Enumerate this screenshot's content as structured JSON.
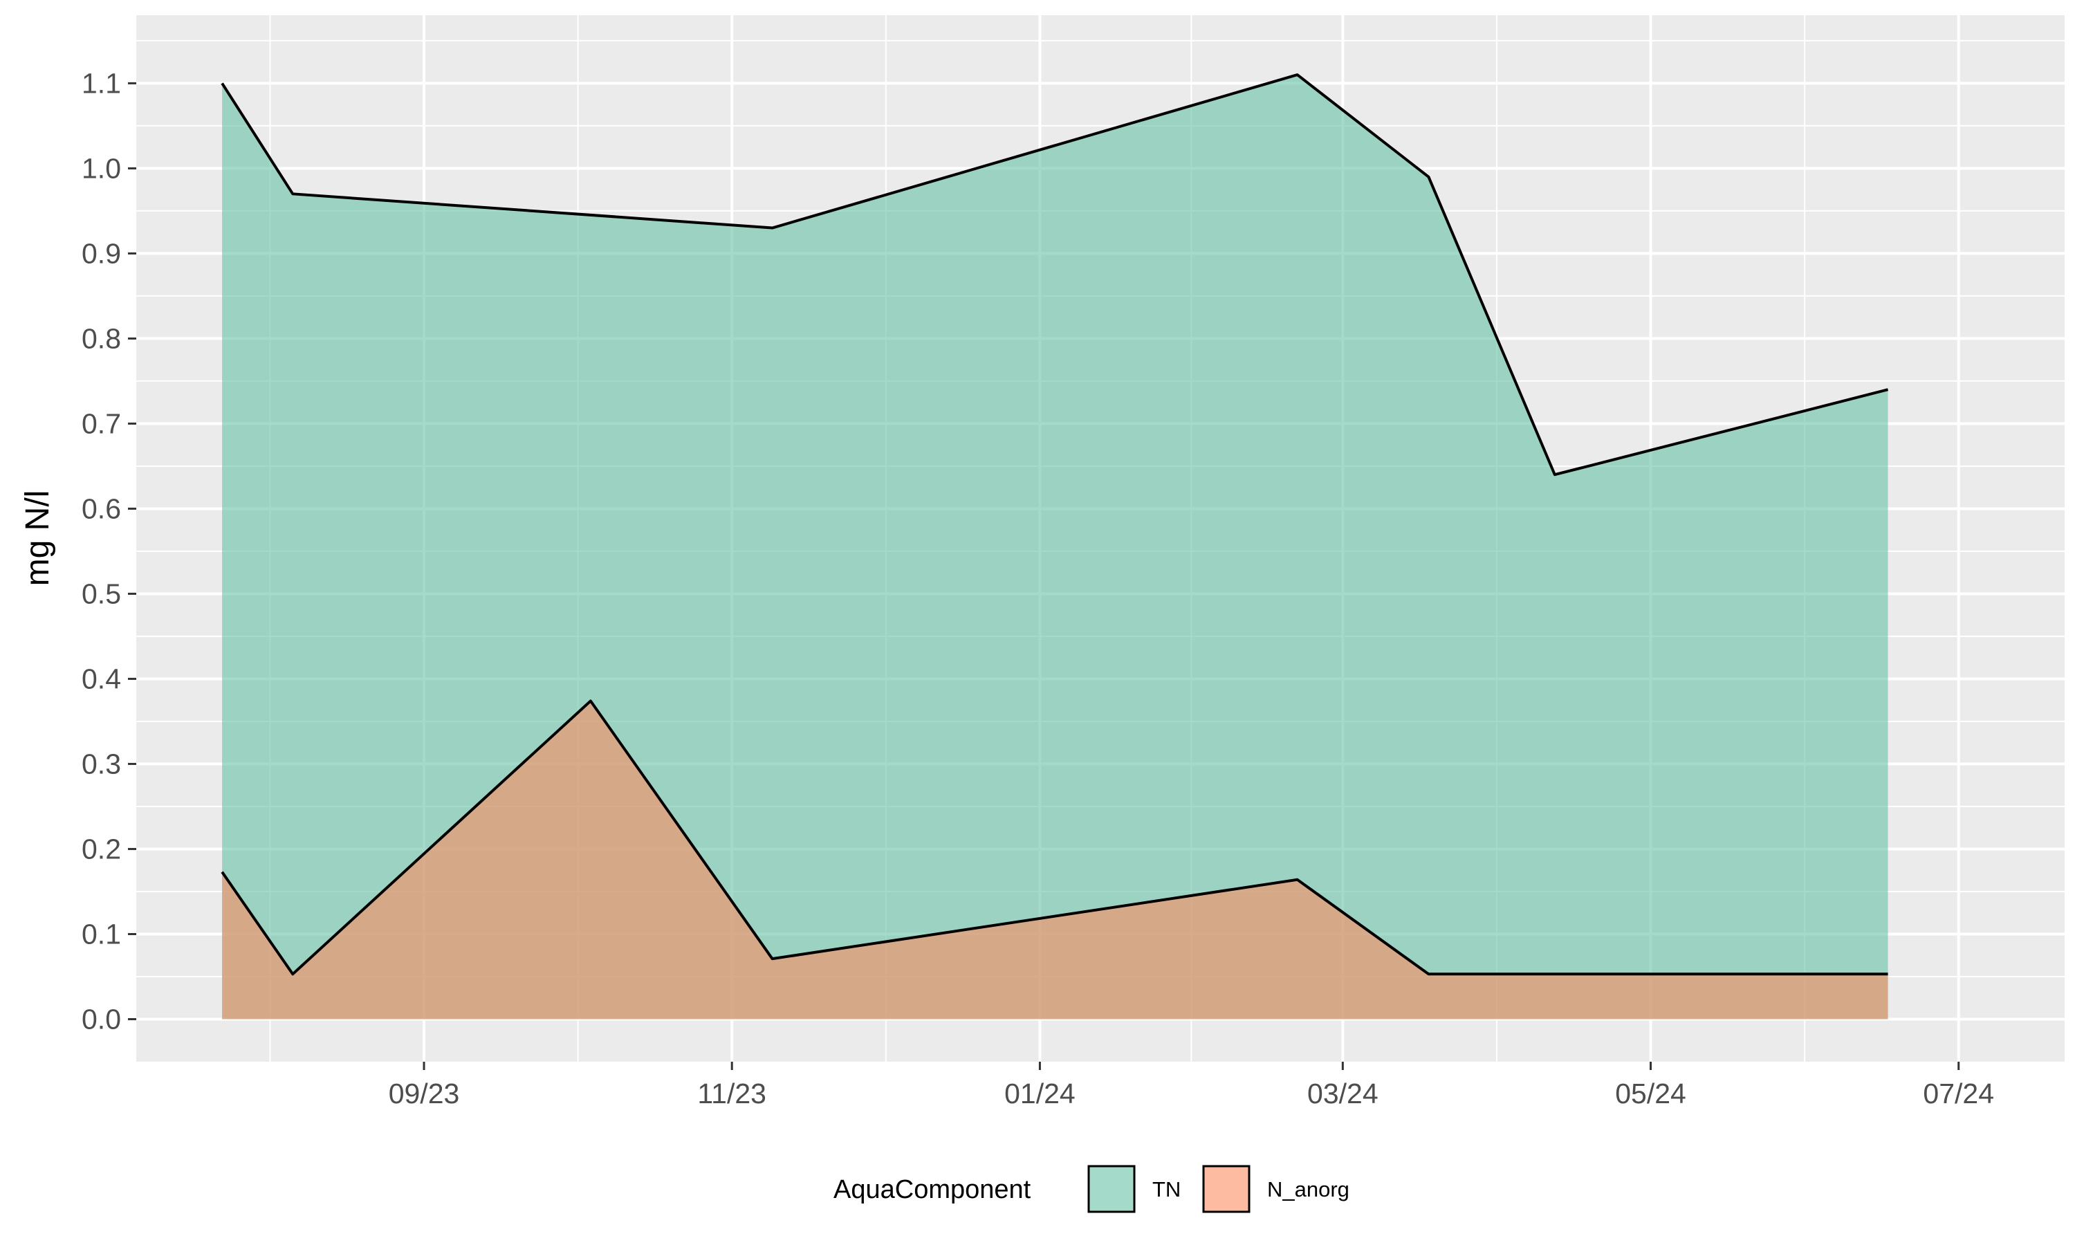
{
  "chart_data": {
    "type": "area",
    "ylabel": "mg N/l",
    "x_tick_labels": [
      "09/23",
      "11/23",
      "01/24",
      "03/24",
      "05/24",
      "07/24"
    ],
    "x_tick_dates": [
      "2023-09-01",
      "2023-11-01",
      "2024-01-01",
      "2024-03-01",
      "2024-05-01",
      "2024-07-01"
    ],
    "xlim": [
      "2023-07-06",
      "2024-07-22"
    ],
    "ylim": [
      -0.05,
      1.18
    ],
    "y_ticks": [
      0.0,
      0.1,
      0.2,
      0.3,
      0.4,
      0.5,
      0.6,
      0.7,
      0.8,
      0.9,
      1.0,
      1.1
    ],
    "y_tick_labels": [
      "0.0",
      "0.1",
      "0.2",
      "0.3",
      "0.4",
      "0.5",
      "0.6",
      "0.7",
      "0.8",
      "0.9",
      "1.0",
      "1.1"
    ],
    "grid": true,
    "legend_title": "AquaComponent",
    "legend_position": "bottom",
    "series": [
      {
        "name": "TN",
        "color": "#66c2a5",
        "points": [
          {
            "x": "2023-07-23",
            "y": 1.1
          },
          {
            "x": "2023-08-06",
            "y": 0.97
          },
          {
            "x": "2023-11-09",
            "y": 0.93
          },
          {
            "x": "2024-02-21",
            "y": 1.11
          },
          {
            "x": "2024-03-18",
            "y": 0.99
          },
          {
            "x": "2024-04-12",
            "y": 0.64
          },
          {
            "x": "2024-06-17",
            "y": 0.74
          }
        ]
      },
      {
        "name": "N_anorg",
        "color": "#fc8d62",
        "points": [
          {
            "x": "2023-07-23",
            "y": 0.173
          },
          {
            "x": "2023-08-06",
            "y": 0.053
          },
          {
            "x": "2023-10-04",
            "y": 0.374
          },
          {
            "x": "2023-11-09",
            "y": 0.071
          },
          {
            "x": "2024-02-21",
            "y": 0.164
          },
          {
            "x": "2024-03-18",
            "y": 0.053
          },
          {
            "x": "2024-06-17",
            "y": 0.053
          }
        ]
      }
    ]
  }
}
